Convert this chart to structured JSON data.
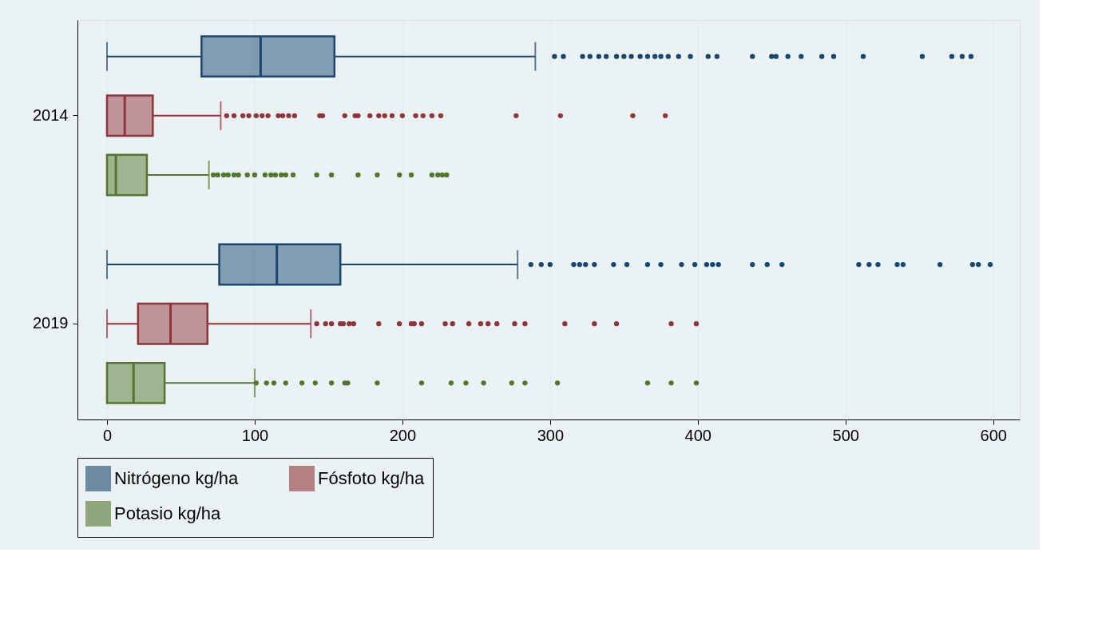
{
  "chart_data": {
    "type": "box",
    "orientation": "horizontal",
    "categories": [
      "2014",
      "2019"
    ],
    "xlim": [
      -20,
      618
    ],
    "xticks": [
      0,
      100,
      200,
      300,
      400,
      500,
      600
    ],
    "grid": "x",
    "legend": "bottom",
    "marker": "circle",
    "series": [
      {
        "name": "Nitrógeno kg/ha",
        "color": "#1a476f",
        "boxes": [
          {
            "low": 0,
            "q1": 64,
            "median": 104,
            "q3": 154,
            "high": 290,
            "outliers": [
              303,
              309,
              322,
              327,
              333,
              338,
              345,
              350,
              355,
              361,
              366,
              371,
              375,
              380,
              387,
              395,
              407,
              413,
              437,
              450,
              453,
              461,
              470,
              484,
              492,
              512,
              552,
              572,
              579,
              585
            ]
          },
          {
            "low": 0,
            "q1": 76,
            "median": 115,
            "q3": 158,
            "high": 278,
            "outliers": [
              287,
              294,
              300,
              316,
              320,
              324,
              330,
              343,
              352,
              366,
              375,
              389,
              398,
              406,
              410,
              414,
              437,
              447,
              457,
              509,
              516,
              522,
              535,
              539,
              564,
              586,
              590,
              598
            ]
          }
        ]
      },
      {
        "name": "Fósfoto kg/ha",
        "color": "#90353b",
        "boxes": [
          {
            "low": 0,
            "q1": 0,
            "median": 12,
            "q3": 31,
            "high": 77,
            "outliers": [
              81,
              86,
              92,
              96,
              101,
              105,
              109,
              116,
              119,
              123,
              127,
              144,
              146,
              161,
              168,
              170,
              178,
              184,
              188,
              193,
              200,
              209,
              214,
              220,
              226,
              277,
              307,
              356,
              378
            ]
          },
          {
            "low": 0,
            "q1": 21,
            "median": 43,
            "q3": 68,
            "high": 138,
            "outliers": [
              142,
              148,
              152,
              158,
              160,
              164,
              167,
              184,
              198,
              206,
              208,
              213,
              229,
              234,
              245,
              253,
              258,
              264,
              276,
              283,
              310,
              330,
              345,
              382,
              399
            ]
          }
        ]
      },
      {
        "name": "Potasio kg/ha",
        "color": "#55752f",
        "boxes": [
          {
            "low": 0,
            "q1": 0,
            "median": 6,
            "q3": 27,
            "high": 69,
            "outliers": [
              72,
              75,
              79,
              82,
              86,
              89,
              95,
              100,
              107,
              111,
              114,
              118,
              121,
              126,
              142,
              152,
              170,
              183,
              198,
              206,
              220,
              224,
              227,
              230
            ]
          },
          {
            "low": 0,
            "q1": 0,
            "median": 18,
            "q3": 39,
            "high": 100,
            "outliers": [
              101,
              108,
              113,
              121,
              132,
              141,
              152,
              161,
              163,
              183,
              213,
              233,
              243,
              255,
              274,
              283,
              305,
              366,
              382,
              399
            ]
          }
        ]
      }
    ]
  }
}
